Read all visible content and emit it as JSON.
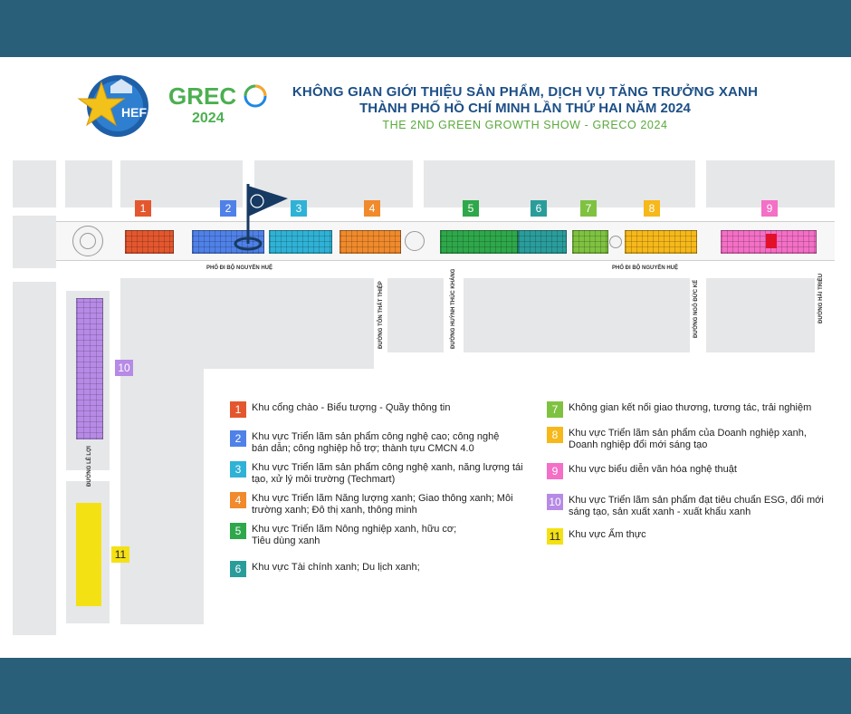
{
  "header": {
    "title_line1": "KHÔNG GIAN GIỚI THIỆU SẢN PHẨM, DỊCH VỤ TĂNG TRƯỞNG XANH",
    "title_line2": "THÀNH PHỐ HỒ CHÍ MINH LẦN THỨ HAI NĂM 2024",
    "subtitle": "THE 2ND GREEN GROWTH SHOW - GRECO 2024",
    "logo_hef_text": "HEF",
    "greco_text": "GRECO",
    "greco_year": "2024"
  },
  "streets": {
    "nguyen_hue_left": "PHỐ ĐI BỘ NGUYỄN HUỆ",
    "nguyen_hue_right": "PHỐ ĐI BỘ NGUYỄN HUỆ",
    "ton_that_thiep": "ĐƯỜNG TÔN THẤT THIỆP",
    "huynh_thuc_khang": "ĐƯỜNG HUỲNH THÚC KHÁNG",
    "ngo_duc_ke": "ĐƯỜNG NGÔ ĐỨC KẾ",
    "hai_trieu": "ĐƯỜNG HẢI TRIỀU",
    "le_loi": "ĐƯỜNG LÊ LỢI"
  },
  "zones": [
    {
      "num": "1",
      "color": "#e4572e",
      "text": "Khu cổng chào - Biểu tượng - Quầy thông tin"
    },
    {
      "num": "2",
      "color": "#4f81e8",
      "text": "Khu vực Triển lãm sản phẩm công nghệ cao; công nghệ bán dẫn; công nghiệp hỗ trợ; thành tựu CMCN 4.0"
    },
    {
      "num": "3",
      "color": "#2fb2d6",
      "text": "Khu vực Triển lãm sản phẩm công nghệ xanh, năng lượng tái tạo, xử lý môi trường (Techmart)"
    },
    {
      "num": "4",
      "color": "#f08a2c",
      "text": "Khu vực Triển lãm Năng lượng xanh; Giao thông xanh; Môi trường xanh; Đô thị xanh, thông minh"
    },
    {
      "num": "5",
      "color": "#2ea84a",
      "text": "Khu vực Triển lãm Nông nghiệp xanh, hữu cơ; Tiêu dùng xanh"
    },
    {
      "num": "6",
      "color": "#2a9d9b",
      "text": "Khu vực Tài chính xanh; Du lịch xanh;"
    },
    {
      "num": "7",
      "color": "#7fc241",
      "text": "Không gian kết nối giao thương, tương tác, trải nghiệm"
    },
    {
      "num": "8",
      "color": "#f6b81a",
      "text": "Khu vực Triển lãm sản phẩm của Doanh nghiệp xanh, Doanh nghiệp đổi mới sáng tạo"
    },
    {
      "num": "9",
      "color": "#f46fc6",
      "text": "Khu vực biểu diễn văn hóa nghệ thuật"
    },
    {
      "num": "10",
      "color": "#b68ae6",
      "text": "Khu vực Triển lãm sản phẩm đạt tiêu chuẩn ESG, đổi mới sáng tạo, sản xuất xanh - xuất khẩu xanh"
    },
    {
      "num": "11",
      "color": "#f4e114",
      "text": "Khu vực Ẩm thực"
    }
  ]
}
